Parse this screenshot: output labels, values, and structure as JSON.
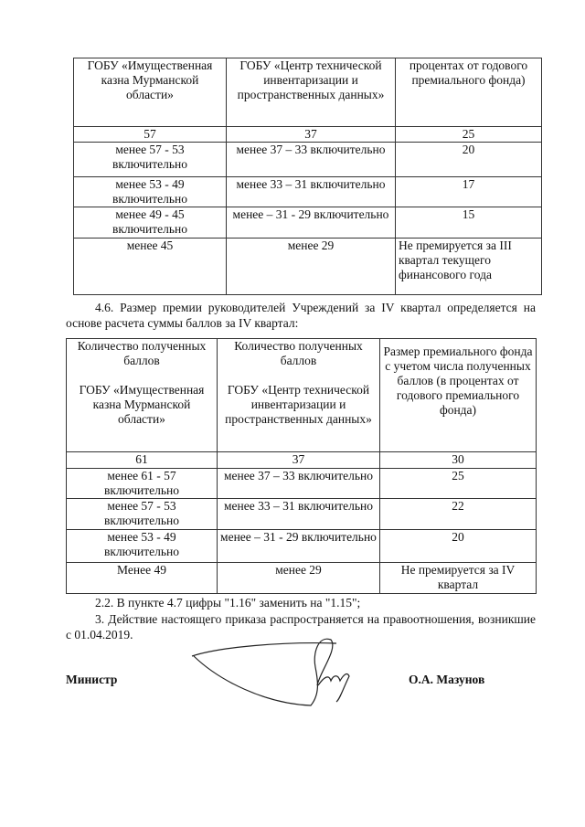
{
  "table_q3": {
    "header": [
      "ГОБУ «Имущественная казна Мурманской области»",
      "ГОБУ «Центр технической инвентаризации и пространственных данных»",
      "процентах от годового премиального фонда)"
    ],
    "rows": [
      [
        "57",
        "37",
        "25"
      ],
      [
        "менее 57 - 53 включительно",
        "менее 37 – 33 включительно",
        "20"
      ],
      [
        "менее 53 - 49 включительно",
        "менее 33 – 31 включительно",
        "17"
      ],
      [
        "менее 49 - 45 включительно",
        "менее  – 31 - 29 включительно",
        "15"
      ],
      [
        "менее 45",
        "менее 29",
        "Не премируется за III квартал текущего финансового года"
      ]
    ]
  },
  "paragraph_4_6": "4.6. Размер премии руководителей Учреждений за IV квартал определяется на основе расчета суммы баллов за IV квартал:",
  "table_q4": {
    "header": [
      "Количество полученных баллов\n\nГОБУ «Имущественная казна Мурманской области»",
      "Количество полученных баллов\n\nГОБУ «Центр технической инвентаризации и пространственных данных»",
      "Размер премиального фонда с учетом числа полученных баллов (в процентах от годового премиального фонда)"
    ],
    "rows": [
      [
        "61",
        "37",
        "30"
      ],
      [
        "менее 61 - 57 включительно",
        "менее 37 – 33 включительно",
        "25"
      ],
      [
        "менее 57 - 53 включительно",
        "менее 33 – 31 включительно",
        "22"
      ],
      [
        "менее 53 - 49 включительно",
        "менее  – 31 - 29 включительно",
        "20"
      ],
      [
        "Менее 49",
        "менее 29",
        "Не премируется за IV квартал"
      ]
    ]
  },
  "paragraph_2_2": "2.2. В пункте 4.7 цифры \"1.16\" заменить на \"1.15\";",
  "paragraph_3": "3. Действие настоящего приказа распространяется на правоотношения, возникшие с 01.04.2019.",
  "signature": {
    "position": "Министр",
    "name": "О.А. Мазунов"
  }
}
